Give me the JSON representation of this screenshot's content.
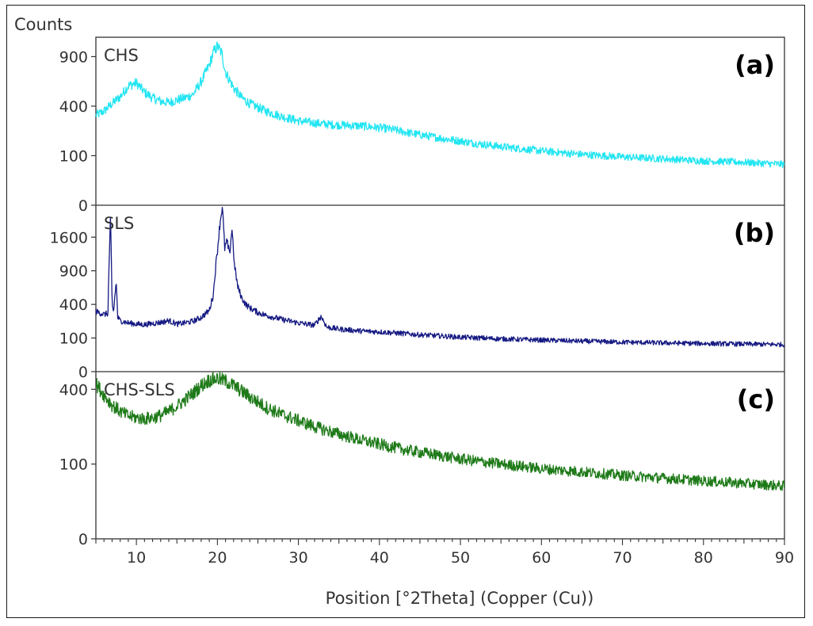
{
  "chart_data": {
    "type": "line",
    "ylabel": "Counts",
    "xlabel": "Position [°2Theta] (Copper (Cu))",
    "xlim": [
      5,
      90
    ],
    "x_ticks": [
      "10",
      "20",
      "30",
      "40",
      "50",
      "60",
      "70",
      "80",
      "90"
    ],
    "y_scale": "sqrt",
    "grid": false,
    "panels": [
      {
        "name": "CHS",
        "letter": "(a)",
        "color": "#22e5f2",
        "ylim": [
          0,
          1150
        ],
        "y_ticks": [
          "0",
          "100",
          "400",
          "900"
        ],
        "series": {
          "x": [
            5,
            6,
            7,
            8,
            9,
            10,
            11,
            12,
            13,
            14,
            15,
            16,
            17,
            18,
            19,
            19.5,
            20,
            20.5,
            21,
            22,
            23,
            24,
            25,
            26,
            28,
            30,
            32,
            34,
            36,
            38,
            40,
            42,
            44,
            46,
            48,
            50,
            52,
            55,
            58,
            60,
            65,
            70,
            75,
            80,
            85,
            90
          ],
          "y": [
            330,
            360,
            420,
            480,
            580,
            610,
            520,
            470,
            440,
            430,
            450,
            470,
            500,
            620,
            800,
            950,
            1030,
            950,
            720,
            560,
            470,
            420,
            390,
            360,
            320,
            290,
            275,
            265,
            260,
            255,
            245,
            230,
            210,
            195,
            180,
            168,
            155,
            140,
            128,
            120,
            105,
            95,
            88,
            80,
            75,
            68
          ]
        }
      },
      {
        "name": "SLS",
        "letter": "(b)",
        "color": "#161a82",
        "ylim": [
          0,
          2450
        ],
        "y_ticks": [
          "0",
          "100",
          "400",
          "900",
          "1600"
        ],
        "series": {
          "x": [
            5,
            6,
            6.5,
            6.8,
            7.0,
            7.2,
            7.5,
            7.7,
            8,
            9,
            10,
            11,
            12,
            13,
            14,
            15,
            16,
            17,
            18,
            19,
            19.5,
            20,
            20.3,
            20.6,
            20.9,
            21.2,
            21.5,
            21.8,
            22.1,
            22.5,
            23,
            23.5,
            24,
            25,
            26,
            27,
            28,
            30,
            32,
            32.8,
            33.5,
            35,
            38,
            40,
            45,
            50,
            55,
            60,
            65,
            70,
            75,
            80,
            85,
            90
          ],
          "y": [
            320,
            290,
            300,
            2000,
            380,
            320,
            700,
            260,
            230,
            210,
            200,
            195,
            205,
            215,
            230,
            200,
            210,
            225,
            260,
            330,
            520,
            1300,
            1900,
            2420,
            1350,
            1500,
            1200,
            1800,
            1000,
            640,
            480,
            400,
            360,
            310,
            280,
            260,
            240,
            210,
            190,
            270,
            175,
            160,
            145,
            140,
            120,
            105,
            95,
            88,
            82,
            77,
            73,
            70,
            67,
            65
          ]
        }
      },
      {
        "name": "CHS-SLS",
        "letter": "(c)",
        "color": "#1e7a18",
        "ylim": [
          0,
          500
        ],
        "y_ticks": [
          "0",
          "100",
          "400"
        ],
        "series": {
          "x": [
            5,
            6,
            7,
            8,
            9,
            10,
            11,
            12,
            13,
            14,
            15,
            16,
            17,
            18,
            19,
            20,
            21,
            22,
            23,
            24,
            25,
            26,
            28,
            30,
            32,
            34,
            36,
            38,
            40,
            42,
            44,
            46,
            48,
            50,
            52,
            55,
            58,
            60,
            65,
            70,
            75,
            80,
            85,
            90
          ],
          "y": [
            430,
            370,
            320,
            290,
            270,
            262,
            258,
            262,
            272,
            290,
            315,
            345,
            380,
            420,
            450,
            460,
            445,
            420,
            390,
            360,
            335,
            310,
            275,
            250,
            225,
            205,
            188,
            172,
            160,
            148,
            138,
            130,
            122,
            114,
            108,
            100,
            93,
            88,
            80,
            72,
            66,
            60,
            55,
            50
          ]
        }
      }
    ]
  }
}
